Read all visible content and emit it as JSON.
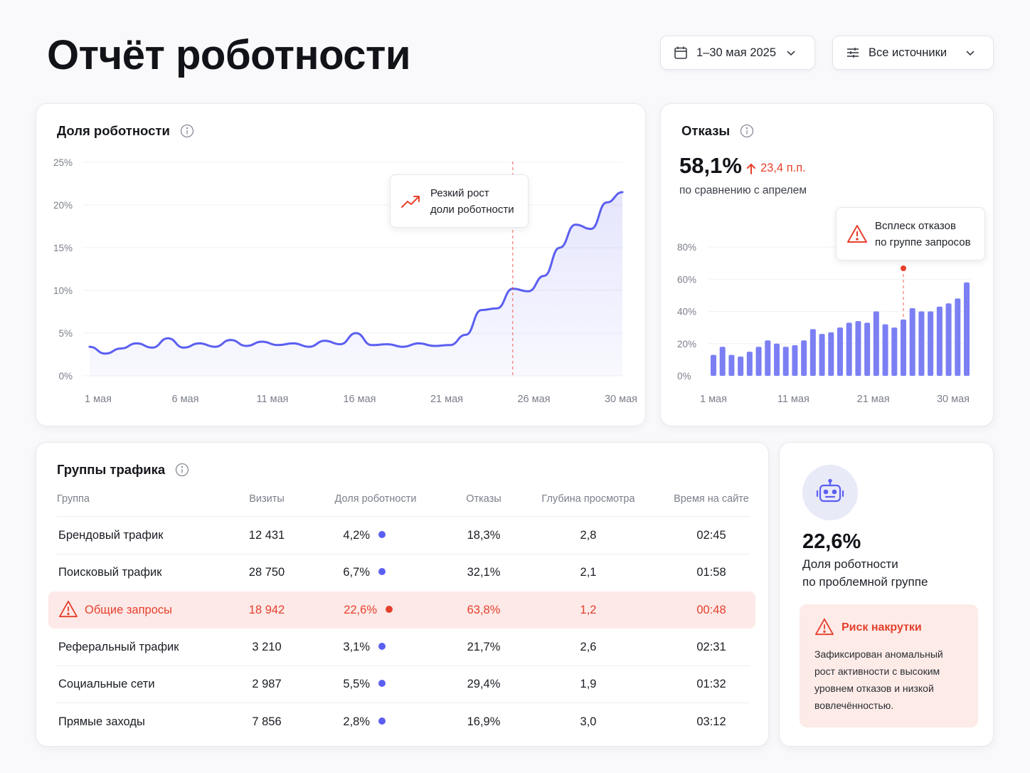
{
  "page": {
    "title": "Отчёт роботности"
  },
  "filters": {
    "date_range": {
      "label": "1–30 мая 2025",
      "icon": "calendar-icon"
    },
    "sources": {
      "label": "Все источники",
      "icon": "sliders-icon"
    }
  },
  "colors": {
    "accent": "#5b5ff0",
    "bar": "#7b7ff3",
    "alert": "#e8402c",
    "alert_bg": "#fde9e7"
  },
  "robot_share_card": {
    "title": "Доля роботности",
    "annotation": {
      "line1": "Резкий рост",
      "line2": "доли роботности",
      "icon": "trend-up-icon"
    },
    "chart_data": {
      "type": "area",
      "x_tick_labels": [
        "1 мая",
        "6 мая",
        "11 мая",
        "16 мая",
        "21 мая",
        "26 мая",
        "30 мая"
      ],
      "y_tick_labels": [
        "0%",
        "5%",
        "10%",
        "15%",
        "20%",
        "25%"
      ],
      "ylim": [
        0,
        25
      ],
      "grid": true,
      "marker_index": 27,
      "values": [
        3.4,
        2.6,
        3.2,
        3.8,
        3.3,
        4.4,
        3.3,
        3.8,
        3.4,
        4.2,
        3.5,
        4.0,
        3.6,
        3.8,
        3.4,
        4.1,
        3.7,
        5.0,
        3.6,
        3.7,
        3.4,
        3.8,
        3.5,
        3.6,
        4.8,
        7.7,
        7.9,
        10.2,
        9.9,
        11.7,
        15.0,
        17.7,
        17.2,
        20.3,
        21.5
      ]
    }
  },
  "bounce_card": {
    "title": "Отказы",
    "value": "58,1%",
    "delta": "23,4 п.п.",
    "comparison": "по сравнению с апрелем",
    "annotation": {
      "line1": "Всплеск отказов",
      "line2": "по группе запросов",
      "icon": "warning-icon"
    },
    "chart_data": {
      "type": "bar",
      "x_tick_labels": [
        "1 мая",
        "11 мая",
        "21 мая",
        "30 мая"
      ],
      "y_tick_labels": [
        "0%",
        "20%",
        "40%",
        "60%",
        "80%"
      ],
      "ylim": [
        0,
        80
      ],
      "grid": true,
      "marker_index": 21,
      "values": [
        13,
        18,
        13,
        12,
        15,
        18,
        22,
        20,
        18,
        19,
        22,
        29,
        26,
        27,
        30,
        33,
        34,
        33,
        40,
        32,
        30,
        35,
        42,
        40,
        40,
        43,
        45,
        48,
        58
      ]
    }
  },
  "traffic_groups": {
    "title": "Группы трафика",
    "columns": [
      "Группа",
      "Визиты",
      "Доля роботности",
      "Отказы",
      "Глубина просмотра",
      "Время на сайте"
    ],
    "rows": [
      {
        "group": "Брендовый трафик",
        "visits": "12 431",
        "robot_share": "4,2%",
        "bounce": "18,3%",
        "depth": "2,8",
        "time": "02:45",
        "alert": false
      },
      {
        "group": "Поисковый трафик",
        "visits": "28 750",
        "robot_share": "6,7%",
        "bounce": "32,1%",
        "depth": "2,1",
        "time": "01:58",
        "alert": false
      },
      {
        "group": "Общие запросы",
        "visits": "18 942",
        "robot_share": "22,6%",
        "bounce": "63,8%",
        "depth": "1,2",
        "time": "00:48",
        "alert": true
      },
      {
        "group": "Реферальный трафик",
        "visits": "3 210",
        "robot_share": "3,1%",
        "bounce": "21,7%",
        "depth": "2,6",
        "time": "02:31",
        "alert": false
      },
      {
        "group": "Социальные сети",
        "visits": "2 987",
        "robot_share": "5,5%",
        "bounce": "29,4%",
        "depth": "1,9",
        "time": "01:32",
        "alert": false
      },
      {
        "group": "Прямые заходы",
        "visits": "7 856",
        "robot_share": "2,8%",
        "bounce": "16,9%",
        "depth": "3,0",
        "time": "03:12",
        "alert": false
      }
    ]
  },
  "problem_card": {
    "icon": "robot-icon",
    "value": "22,6%",
    "label_line1": "Доля роботности",
    "label_line2": "по проблемной группе",
    "risk": {
      "title": "Риск накрутки",
      "lines": [
        "Зафиксирован аномальный",
        "рост активности с высоким",
        "уровнем отказов и низкой",
        "вовлечённостью."
      ]
    }
  }
}
